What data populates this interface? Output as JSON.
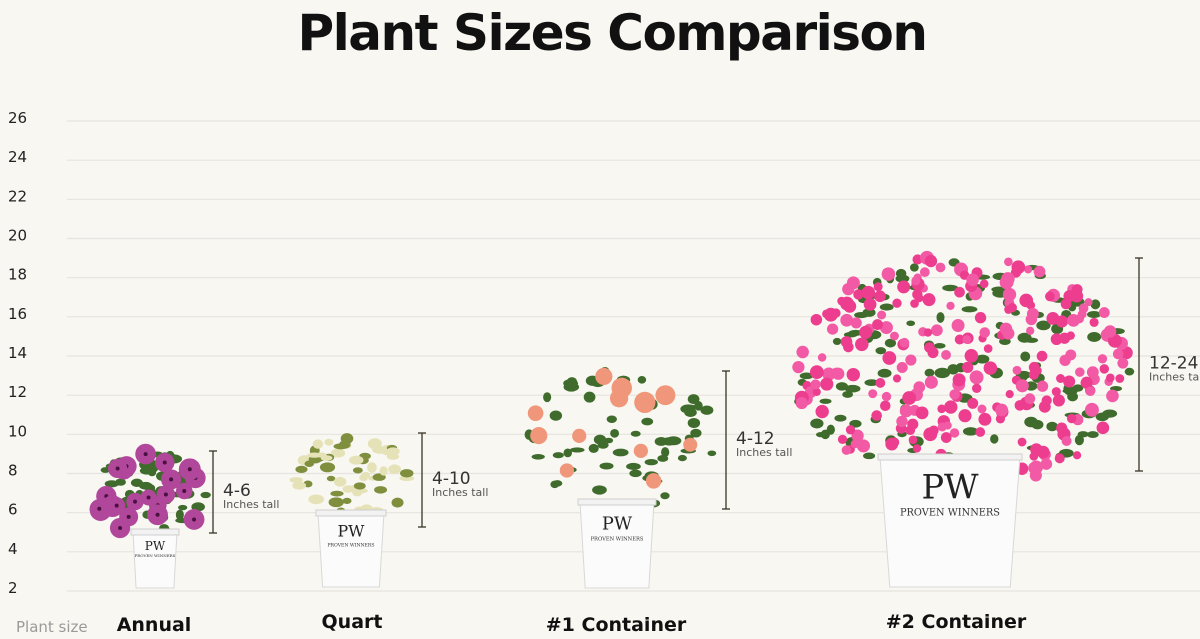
{
  "title": "Plant Sizes Comparison",
  "chart_data": {
    "type": "range",
    "title": "Plant Sizes Comparison",
    "xlabel": "Plant size",
    "ylabel": "",
    "ylim": [
      2,
      26
    ],
    "yticks": [
      2,
      4,
      6,
      8,
      10,
      12,
      14,
      16,
      18,
      20,
      22,
      24,
      26
    ],
    "grid": true,
    "categories": [
      "Annual",
      "Quart",
      "#1 Container",
      "#2 Container"
    ],
    "ranges": [
      {
        "label": "4-6",
        "min": 4,
        "max": 6,
        "unit": "Inches tall"
      },
      {
        "label": "4-10",
        "min": 4,
        "max": 10,
        "unit": "Inches tall"
      },
      {
        "label": "4-12",
        "min": 4,
        "max": 12,
        "unit": "Inches tall"
      },
      {
        "label": "12-24",
        "min": 12,
        "max": 24,
        "unit": "Inches tall"
      }
    ],
    "pot_brand": "PROVEN WINNERS",
    "colors": {
      "background": "#f8f7f2",
      "grid": "#e6e4de",
      "bracket": "#3b3426",
      "annual_flower": "#b0479a",
      "quart_foliage": "#c9c98a",
      "rose": "#f0967a",
      "weigela": "#ec3d8f",
      "leaf": "#3f6b2c"
    }
  }
}
